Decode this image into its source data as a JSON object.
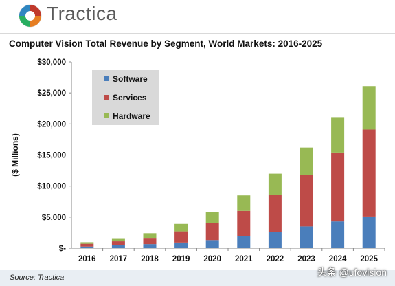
{
  "header": {
    "logo_text": "Tractica"
  },
  "source": "Source: Tractica",
  "watermark": "头条 @ufovision",
  "chart_data": {
    "type": "bar",
    "stacked": true,
    "title": "Computer Vision Total Revenue by Segment, World Markets: 2016-2025",
    "xlabel": "",
    "ylabel": "($ Millions)",
    "ylim": [
      0,
      30000
    ],
    "yticks": [
      0,
      5000,
      10000,
      15000,
      20000,
      25000,
      30000
    ],
    "ytick_labels": [
      "$-",
      "$5,000",
      "$10,000",
      "$15,000",
      "$20,000",
      "$25,000",
      "$30,000"
    ],
    "grid": false,
    "legend_position": "top-left",
    "categories": [
      "2016",
      "2017",
      "2018",
      "2019",
      "2020",
      "2021",
      "2022",
      "2023",
      "2024",
      "2025"
    ],
    "series": [
      {
        "name": "Software",
        "color": "#4a7ebb",
        "values": [
          250,
          450,
          650,
          900,
          1300,
          1900,
          2600,
          3500,
          4300,
          5100
        ]
      },
      {
        "name": "Services",
        "color": "#be4b48",
        "values": [
          450,
          650,
          1000,
          1800,
          2700,
          4100,
          6000,
          8300,
          11100,
          14000
        ]
      },
      {
        "name": "Hardware",
        "color": "#98b954",
        "values": [
          250,
          500,
          750,
          1200,
          1800,
          2500,
          3400,
          4400,
          5700,
          7000
        ]
      }
    ]
  }
}
